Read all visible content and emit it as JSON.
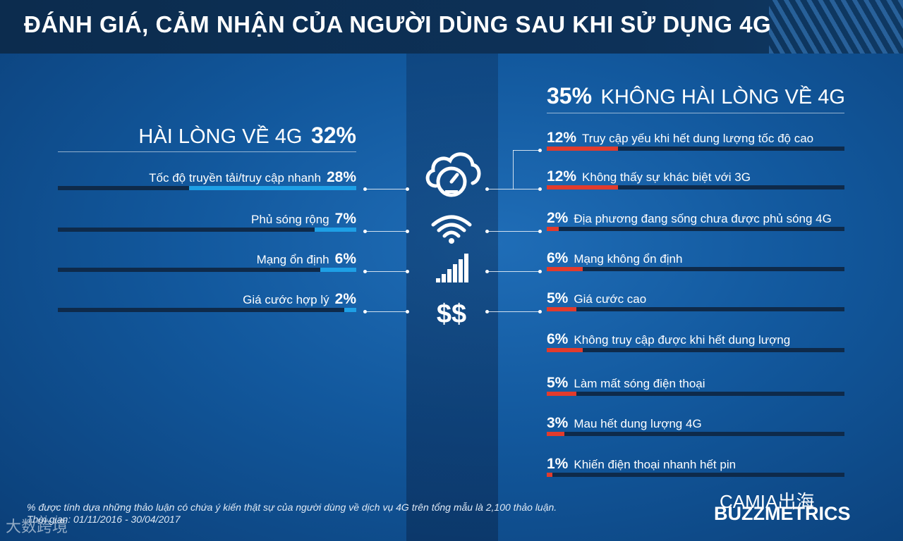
{
  "header": {
    "title": "ĐÁNH GIÁ, CẢM NHẬN CỦA NGƯỜI DÙNG SAU KHI SỬ DỤNG 4G"
  },
  "colors": {
    "positive_bar": "#1ea0e6",
    "negative_bar": "#e23b2c",
    "track": "#0e2a4a"
  },
  "icons": [
    "cloud-speedometer-icon",
    "wifi-icon",
    "signal-bars-icon",
    "dollar-icon"
  ],
  "footnote": {
    "line1": "% được tính dựa những thảo luận có chứa ý kiến thật sự của người dùng về dịch vụ 4G trên tổng mẫu là 2,100 thảo luận.",
    "line2": "Thời gian: 01/11/2016 - 30/04/2017"
  },
  "branding": {
    "logo": "BUZZMETRICS",
    "overlay": "CAMIA出海",
    "watermark": "大数跨境"
  },
  "chart_data": [
    {
      "type": "bar",
      "orientation": "horizontal",
      "title_label": "HÀI LÒNG VỀ 4G",
      "title_value": "32%",
      "unit": "%",
      "xlim": [
        0,
        28
      ],
      "items": [
        {
          "label": "Tốc độ truyền tải/truy cập nhanh",
          "value": 28,
          "value_text": "28%"
        },
        {
          "label": "Phủ sóng rộng",
          "value": 7,
          "value_text": "7%"
        },
        {
          "label": "Mạng ổn định",
          "value": 6,
          "value_text": "6%"
        },
        {
          "label": "Giá cước hợp lý",
          "value": 2,
          "value_text": "2%"
        }
      ]
    },
    {
      "type": "bar",
      "orientation": "horizontal",
      "title_value": "35%",
      "title_label": "KHÔNG HÀI LÒNG VỀ 4G",
      "unit": "%",
      "xlim": [
        0,
        50
      ],
      "items": [
        {
          "label": "Truy cập yếu khi hết dung lượng tốc độ cao",
          "value": 12,
          "value_text": "12%"
        },
        {
          "label": "Không thấy sự khác biệt với 3G",
          "value": 12,
          "value_text": "12%"
        },
        {
          "label": "Địa phương đang sống chưa được phủ sóng 4G",
          "value": 2,
          "value_text": "2%"
        },
        {
          "label": "Mạng không ổn định",
          "value": 6,
          "value_text": "6%"
        },
        {
          "label": "Giá cước cao",
          "value": 5,
          "value_text": "5%"
        },
        {
          "label": "Không truy cập được khi hết dung lượng",
          "value": 6,
          "value_text": "6%"
        },
        {
          "label": "Làm mất sóng điện thoại",
          "value": 5,
          "value_text": "5%"
        },
        {
          "label": "Mau hết dung lượng 4G",
          "value": 3,
          "value_text": "3%"
        },
        {
          "label": "Khiến điện thoại nhanh hết pin",
          "value": 1,
          "value_text": "1%"
        }
      ]
    }
  ]
}
